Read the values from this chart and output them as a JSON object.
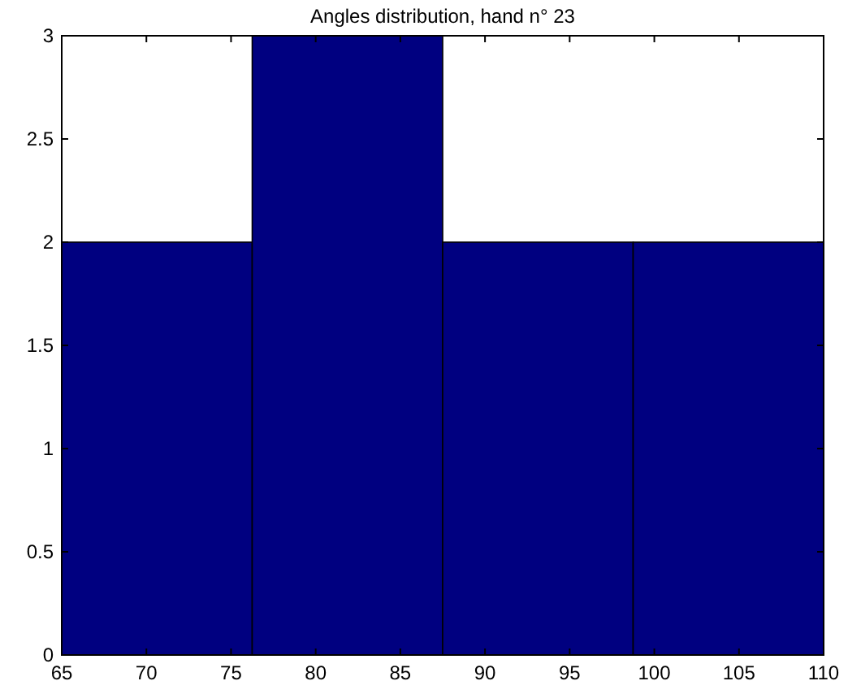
{
  "chart_data": {
    "type": "histogram",
    "title": "Angles distribution, hand n° 23",
    "bins": [
      65,
      76.25,
      87.5,
      98.75,
      110
    ],
    "values": [
      2,
      3,
      2,
      2
    ],
    "color": "#000080",
    "xlim": [
      65,
      110
    ],
    "xticks": [
      65,
      70,
      75,
      80,
      85,
      90,
      95,
      100,
      105,
      110
    ],
    "ylim": [
      0,
      3
    ],
    "yticks": [
      0,
      0.5,
      1,
      1.5,
      2,
      2.5,
      3
    ],
    "grid": false
  }
}
